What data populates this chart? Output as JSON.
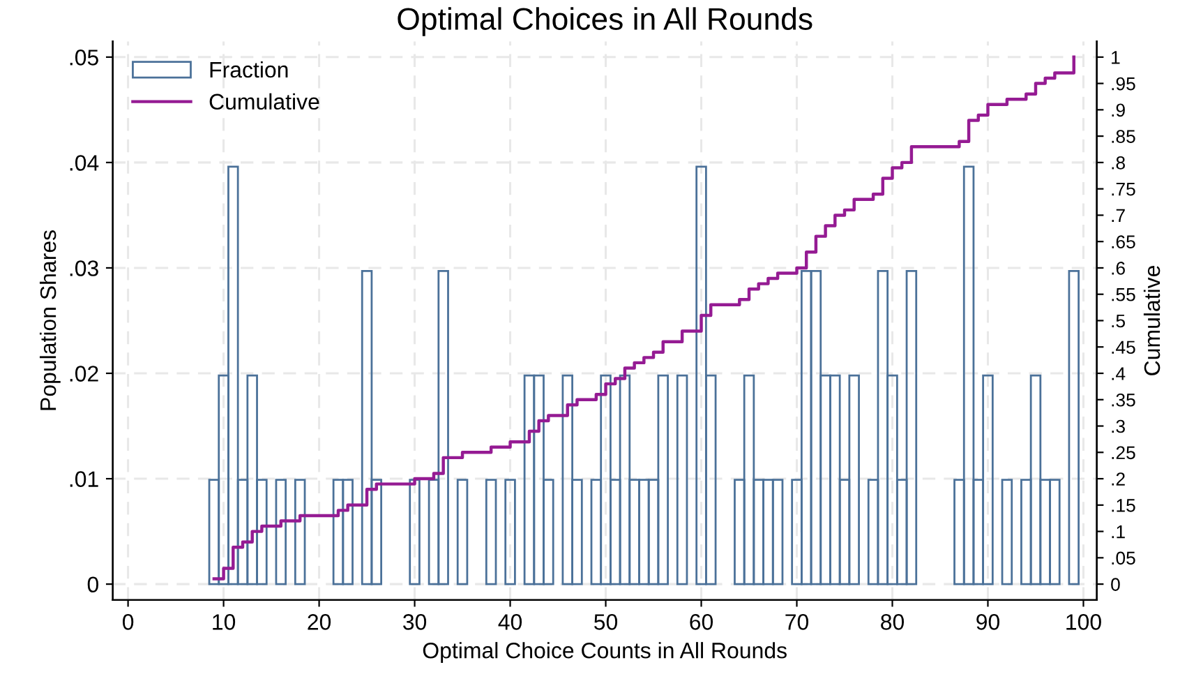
{
  "chart_data": {
    "type": "histogram",
    "title": "Optimal Choices in All Rounds",
    "xlabel": "Optimal Choice Counts in All Rounds",
    "ylabel": "Population Shares",
    "y2label": "Cumulative",
    "bins": [
      8.5,
      9.5,
      10.5,
      11.5,
      12.5,
      13.5,
      14.5,
      15.5,
      16.5,
      17.5,
      18.5,
      19.5,
      20.5,
      21.5,
      22.5,
      23.5,
      24.5,
      25.5,
      26.5,
      27.5,
      28.5,
      29.5,
      30.5,
      31.5,
      32.5,
      33.5,
      34.5,
      35.5,
      36.5,
      37.5,
      38.5,
      39.5,
      40.5,
      41.5,
      42.5,
      43.5,
      44.5,
      45.5,
      46.5,
      47.5,
      48.5,
      49.5,
      50.5,
      51.5,
      52.5,
      53.5,
      54.5,
      55.5,
      56.5,
      57.5,
      58.5,
      59.5,
      60.5,
      61.5,
      62.5,
      63.5,
      64.5,
      65.5,
      66.5,
      67.5,
      68.5,
      69.5,
      70.5,
      71.5,
      72.5,
      73.5,
      74.5,
      75.5,
      76.5,
      77.5,
      78.5,
      79.5,
      80.5,
      81.5,
      82.5,
      83.5,
      84.5,
      85.5,
      86.5,
      87.5,
      88.5,
      89.5,
      90.5,
      91.5,
      92.5,
      93.5,
      94.5,
      95.5,
      96.5,
      97.5,
      98.5,
      99.5
    ],
    "series": [
      {
        "name": "Fraction",
        "color": "#4b7199",
        "values": [
          0.0099,
          0.0198,
          0.0396,
          0.0099,
          0.0198,
          0.0099,
          0,
          0.0099,
          0,
          0.0099,
          0,
          0,
          0,
          0.0099,
          0.0099,
          0,
          0.0297,
          0.0099,
          0,
          0,
          0,
          0.0099,
          0,
          0.0099,
          0.0297,
          0,
          0.0099,
          0,
          0,
          0.0099,
          0,
          0.0099,
          0,
          0.0198,
          0.0198,
          0.0099,
          0,
          0.0198,
          0.0099,
          0,
          0.0099,
          0.0198,
          0.0099,
          0.0198,
          0.0099,
          0.0099,
          0.0099,
          0.0198,
          0,
          0.0198,
          0,
          0.0396,
          0.0198,
          0,
          0,
          0.0099,
          0.0198,
          0.0099,
          0.0099,
          0.0099,
          0,
          0.0099,
          0.0297,
          0.0297,
          0.0198,
          0.0198,
          0.0099,
          0.0198,
          0,
          0.0099,
          0.0297,
          0.0198,
          0.0099,
          0.0297,
          0,
          0,
          0,
          0,
          0.0099,
          0.0396,
          0.0099,
          0.0198,
          0,
          0.0099,
          0,
          0.0099,
          0.0198,
          0.0099,
          0.0099,
          0,
          0.0297
        ]
      },
      {
        "name": "Cumulative",
        "type": "step",
        "axis": "y2",
        "color": "#951b93",
        "x": [
          9,
          10,
          11,
          12,
          13,
          14,
          16,
          18,
          22,
          23,
          25,
          26,
          30,
          32,
          33,
          35,
          38,
          40,
          42,
          43,
          44,
          46,
          47,
          49,
          50,
          51,
          52,
          53,
          54,
          55,
          56,
          58,
          60,
          61,
          64,
          65,
          66,
          67,
          68,
          70,
          71,
          72,
          73,
          74,
          75,
          76,
          78,
          79,
          80,
          81,
          82,
          87,
          88,
          89,
          90,
          92,
          94,
          95,
          96,
          97,
          99
        ],
        "values": [
          0.01,
          0.03,
          0.07,
          0.08,
          0.1,
          0.11,
          0.12,
          0.13,
          0.14,
          0.15,
          0.18,
          0.19,
          0.2,
          0.21,
          0.24,
          0.25,
          0.26,
          0.27,
          0.29,
          0.31,
          0.32,
          0.34,
          0.35,
          0.36,
          0.38,
          0.39,
          0.41,
          0.42,
          0.43,
          0.44,
          0.46,
          0.48,
          0.51,
          0.53,
          0.54,
          0.56,
          0.57,
          0.58,
          0.59,
          0.6,
          0.63,
          0.66,
          0.68,
          0.7,
          0.71,
          0.73,
          0.74,
          0.77,
          0.79,
          0.8,
          0.83,
          0.84,
          0.88,
          0.89,
          0.91,
          0.92,
          0.93,
          0.95,
          0.96,
          0.97,
          1
        ]
      }
    ],
    "xlim": [
      -1.6,
      101.4
    ],
    "xticks": [
      0,
      10,
      20,
      30,
      40,
      50,
      60,
      70,
      80,
      90,
      100
    ],
    "ylim": [
      -0.0015,
      0.0515
    ],
    "yticks": [
      0,
      {
        "value": 0.01,
        "label": ".01"
      },
      {
        "value": 0.02,
        "label": ".02"
      },
      {
        "value": 0.03,
        "label": ".03"
      },
      {
        "value": 0.04,
        "label": ".04"
      },
      {
        "value": 0.05,
        "label": ".05"
      }
    ],
    "y2lim": [
      -0.03,
      1.03
    ],
    "y2ticks": [
      0,
      {
        "value": 0.05,
        "label": ".05"
      },
      {
        "value": 0.1,
        "label": ".1"
      },
      {
        "value": 0.15,
        "label": ".15"
      },
      {
        "value": 0.2,
        "label": ".2"
      },
      {
        "value": 0.25,
        "label": ".25"
      },
      {
        "value": 0.3,
        "label": ".3"
      },
      {
        "value": 0.35,
        "label": ".35"
      },
      {
        "value": 0.4,
        "label": ".4"
      },
      {
        "value": 0.45,
        "label": ".45"
      },
      {
        "value": 0.5,
        "label": ".5"
      },
      {
        "value": 0.55,
        "label": ".55"
      },
      {
        "value": 0.6,
        "label": ".6"
      },
      {
        "value": 0.65,
        "label": ".65"
      },
      {
        "value": 0.7,
        "label": ".7"
      },
      {
        "value": 0.75,
        "label": ".75"
      },
      {
        "value": 0.8,
        "label": ".8"
      },
      {
        "value": 0.85,
        "label": ".85"
      },
      {
        "value": 0.9,
        "label": ".9"
      },
      {
        "value": 0.95,
        "label": ".95"
      },
      1
    ],
    "grid": true,
    "legend": "top left",
    "line_style": "solid"
  }
}
